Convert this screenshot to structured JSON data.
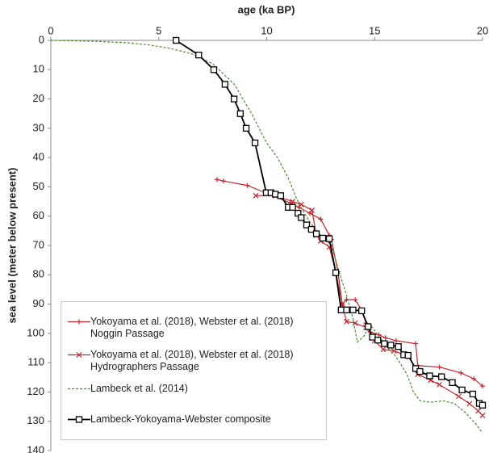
{
  "chart_data": {
    "type": "line",
    "x_label": "age (ka BP)",
    "y_label": "sea level (meter below present)",
    "xlim": [
      0,
      20
    ],
    "xticks": [
      0,
      5,
      10,
      15,
      20
    ],
    "ylim": [
      0,
      140
    ],
    "yticks": [
      0,
      10,
      20,
      30,
      40,
      50,
      60,
      70,
      80,
      90,
      100,
      110,
      120,
      130,
      140
    ],
    "y_inverted": true,
    "x_axis_position": "top",
    "grid": false,
    "legend_position": "bottom-left",
    "series": [
      {
        "name": "Yokoyama et al. (2018), Webster et al. (2018)\nNoggin Passage",
        "color": "#c0262d",
        "marker": "plus",
        "dash": false,
        "x": [
          7.7,
          8.0,
          9.1,
          10.1,
          11.1,
          11.5,
          12.0,
          12.5,
          12.9,
          13.0,
          13.3,
          13.5,
          13.7,
          14.1,
          14.4,
          14.6,
          14.8,
          15.2,
          15.5,
          16.0,
          16.9,
          17.0,
          18.0,
          19.0,
          19.6,
          20.0
        ],
        "values": [
          47.5,
          48,
          49.5,
          52.5,
          55.5,
          57,
          59,
          61,
          66.5,
          68,
          79,
          90,
          88.5,
          88.5,
          92,
          96.5,
          99.5,
          100.5,
          101.5,
          102.5,
          103.5,
          111,
          111.5,
          113.5,
          115.5,
          118
        ]
      },
      {
        "name": "Yokoyama et al. (2018), Webster et al. (2018)\nHydrographers Passage",
        "color": "#c0262d",
        "marker": "x",
        "dash": false,
        "x": [
          9.5,
          10.4,
          11.2,
          11.6,
          12.1,
          12.3,
          12.5,
          12.9,
          13.2,
          13.5,
          13.7,
          14.1,
          14.6,
          15.0,
          15.4,
          15.9,
          16.6,
          17.0,
          17.6,
          18.0,
          18.9,
          19.4,
          19.8,
          20.0
        ],
        "values": [
          53,
          53,
          55,
          56,
          58,
          66.5,
          68.5,
          70.5,
          79,
          90,
          96,
          96.5,
          98,
          102.5,
          105.5,
          106,
          108,
          114,
          116,
          117.5,
          121.5,
          124,
          126.5,
          128
        ]
      },
      {
        "name": "Lambeck et al. (2014)",
        "color": "#4e8a2f",
        "marker": "none",
        "dash": true,
        "x": [
          0,
          2,
          3.5,
          4.5,
          5.5,
          6.5,
          7.5,
          8.5,
          9.3,
          10,
          10.5,
          11,
          11.5,
          12,
          12.5,
          13.0,
          13.4,
          13.7,
          14.0,
          14.2,
          14.5,
          14.8,
          15.2,
          15.6,
          16,
          16.5,
          16.8,
          17.1,
          17.6,
          18.2,
          18.7,
          19.2,
          19.7,
          20.0
        ],
        "values": [
          0,
          0.3,
          0.8,
          1.5,
          2.7,
          4.5,
          8,
          15,
          25,
          35,
          40,
          47,
          56,
          62,
          66.5,
          70,
          80,
          87,
          95,
          103,
          101,
          97,
          101,
          105,
          108,
          114,
          120,
          123,
          123.5,
          123,
          124,
          127,
          131,
          134
        ]
      },
      {
        "name": "Lambeck-Yokoyama-Webster composite",
        "color": "#000000",
        "marker": "square",
        "dash": false,
        "x": [
          5.8,
          6.85,
          7.55,
          8.07,
          8.49,
          8.78,
          9.05,
          9.46,
          9.98,
          10.2,
          10.4,
          10.65,
          11.0,
          11.2,
          11.45,
          11.6,
          11.85,
          12.07,
          12.3,
          12.6,
          12.9,
          13.2,
          13.45,
          13.7,
          14.0,
          14.4,
          14.7,
          14.9,
          15.15,
          15.45,
          15.75,
          16.1,
          16.35,
          16.55,
          16.9,
          17.1,
          17.55,
          18.1,
          18.6,
          19.05,
          19.55,
          19.85,
          20.0
        ],
        "values": [
          0,
          5,
          10,
          15,
          20,
          25,
          30,
          35,
          52,
          52,
          52.5,
          53,
          57,
          57,
          59,
          60.5,
          63,
          64.5,
          66,
          67.5,
          67.7,
          79.3,
          92,
          92,
          92,
          92.3,
          97.7,
          101.3,
          102.3,
          103.5,
          104,
          104.5,
          107.3,
          107.5,
          112,
          113,
          114.5,
          114.8,
          116.8,
          119.3,
          120.7,
          123.9,
          124.5
        ]
      }
    ]
  }
}
